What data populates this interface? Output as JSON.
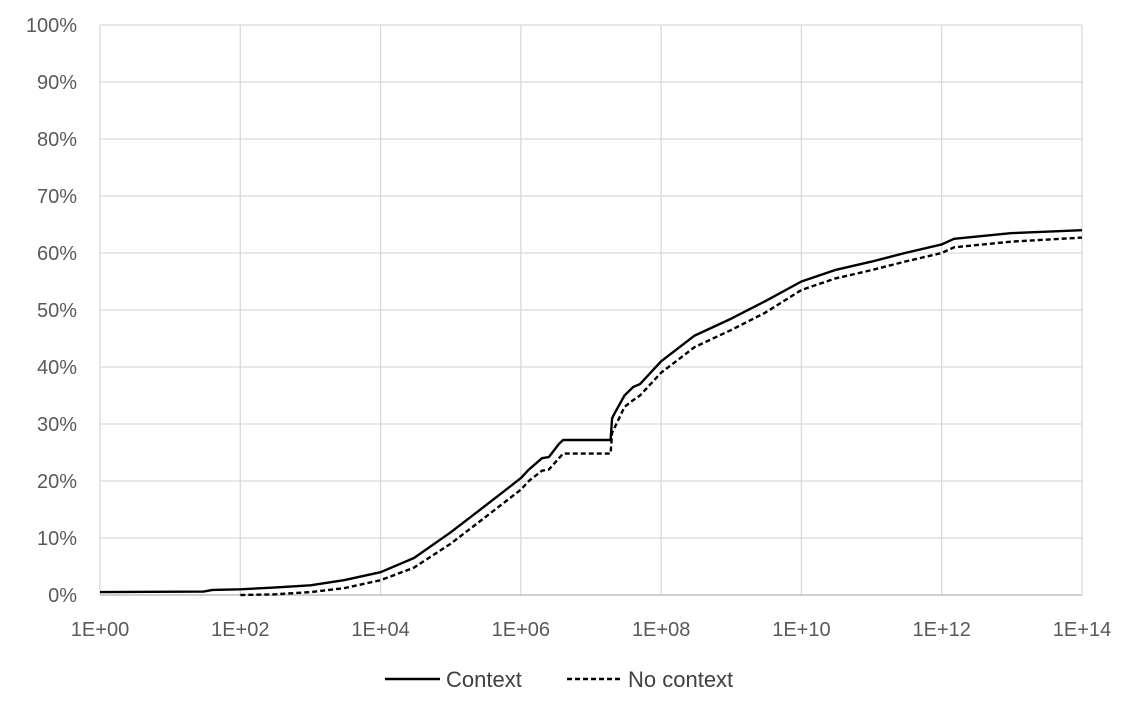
{
  "chart_data": {
    "type": "line",
    "x_scale": "log10",
    "xlim": [
      1,
      100000000000000
    ],
    "ylim": [
      0,
      100
    ],
    "grid": true,
    "legend_position": "bottom",
    "x_ticks": [
      "1E+00",
      "1E+02",
      "1E+04",
      "1E+06",
      "1E+08",
      "1E+10",
      "1E+12",
      "1E+14"
    ],
    "y_ticks": [
      "0%",
      "10%",
      "20%",
      "30%",
      "40%",
      "50%",
      "60%",
      "70%",
      "80%",
      "90%",
      "100%"
    ],
    "series": [
      {
        "name": "Context",
        "style": "solid",
        "color": "#000000",
        "x": [
          1,
          30,
          40,
          100,
          300,
          1000,
          3000,
          10000,
          30000,
          100000,
          300000,
          1000000,
          1300000,
          2000000,
          2500000,
          3500000,
          4000000,
          10000000,
          19000000,
          20000000,
          22000000,
          30000000,
          40000000,
          50000000,
          100000000,
          300000000,
          1000000000,
          3000000000,
          10000000000,
          30000000000,
          100000000000,
          300000000000,
          1000000000000,
          1500000000000,
          10000000000000,
          100000000000000
        ],
        "y": [
          0.5,
          0.6,
          0.9,
          1.0,
          1.3,
          1.7,
          2.6,
          4.0,
          6.5,
          11.0,
          15.5,
          20.5,
          22.0,
          24.0,
          24.2,
          26.5,
          27.2,
          27.2,
          27.2,
          31.0,
          32.0,
          35.0,
          36.5,
          37.0,
          41.0,
          45.5,
          48.5,
          51.5,
          55.0,
          57.0,
          58.5,
          60.0,
          61.5,
          62.5,
          63.5,
          64.0
        ]
      },
      {
        "name": "No context",
        "style": "dashed",
        "color": "#000000",
        "x": [
          100,
          300,
          1000,
          3000,
          10000,
          30000,
          100000,
          300000,
          1000000,
          1300000,
          2000000,
          2500000,
          3500000,
          4000000,
          10000000,
          19000000,
          20000000,
          22000000,
          30000000,
          40000000,
          50000000,
          100000000,
          300000000,
          1000000000,
          3000000000,
          10000000000,
          30000000000,
          100000000000,
          300000000000,
          1000000000000,
          1500000000000,
          10000000000000,
          100000000000000
        ],
        "y": [
          0.0,
          0.1,
          0.5,
          1.2,
          2.6,
          4.8,
          9.0,
          13.5,
          18.5,
          20.0,
          21.8,
          22.0,
          24.0,
          24.8,
          24.8,
          24.8,
          28.5,
          29.5,
          33.0,
          34.2,
          35.0,
          39.0,
          43.5,
          46.5,
          49.5,
          53.5,
          55.5,
          57.0,
          58.5,
          60.0,
          61.0,
          62.0,
          62.7
        ]
      }
    ]
  }
}
